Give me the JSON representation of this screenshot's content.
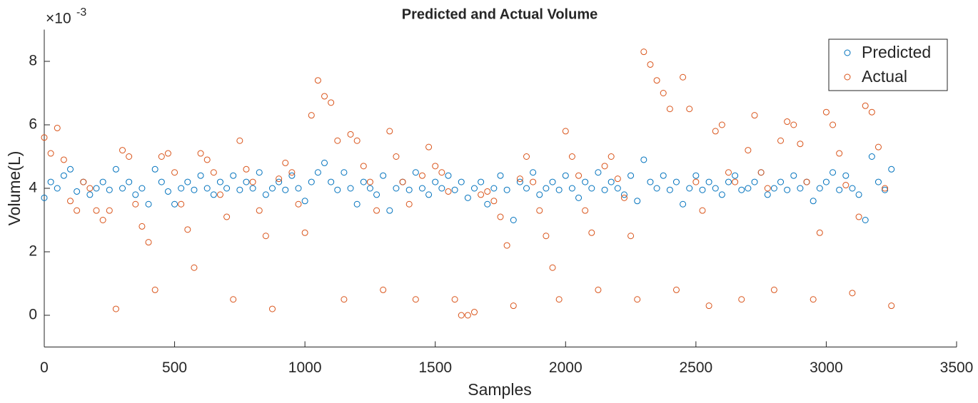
{
  "chart_data": {
    "type": "scatter",
    "title": "Predicted and Actual Volume",
    "x_label": "Samples",
    "y_label": "Volume(L)",
    "y_multiplier": "×10",
    "y_exponent": "-3",
    "xlim": [
      0,
      3500
    ],
    "xticks": [
      0,
      500,
      1000,
      1500,
      2000,
      2500,
      3000,
      3500
    ],
    "ylim": [
      -1,
      9
    ],
    "yticks": [
      0,
      2,
      4,
      6,
      8
    ],
    "grid": false,
    "legend": "top-right",
    "x": [
      0,
      25,
      50,
      75,
      100,
      125,
      150,
      175,
      200,
      225,
      250,
      275,
      300,
      325,
      350,
      375,
      400,
      425,
      450,
      475,
      500,
      525,
      550,
      575,
      600,
      625,
      650,
      675,
      700,
      725,
      750,
      775,
      800,
      825,
      850,
      875,
      900,
      925,
      950,
      975,
      1000,
      1025,
      1050,
      1075,
      1100,
      1125,
      1150,
      1175,
      1200,
      1225,
      1250,
      1275,
      1300,
      1325,
      1350,
      1375,
      1400,
      1425,
      1450,
      1475,
      1500,
      1525,
      1550,
      1575,
      1600,
      1625,
      1650,
      1675,
      1700,
      1725,
      1750,
      1775,
      1800,
      1825,
      1850,
      1875,
      1900,
      1925,
      1950,
      1975,
      2000,
      2025,
      2050,
      2075,
      2100,
      2125,
      2150,
      2175,
      2200,
      2225,
      2250,
      2275,
      2300,
      2325,
      2350,
      2375,
      2400,
      2425,
      2450,
      2475,
      2500,
      2525,
      2550,
      2575,
      2600,
      2625,
      2650,
      2675,
      2700,
      2725,
      2750,
      2775,
      2800,
      2825,
      2850,
      2875,
      2900,
      2925,
      2950,
      2975,
      3000,
      3025,
      3050,
      3075,
      3100,
      3125,
      3150,
      3175,
      3200,
      3225,
      3250
    ],
    "series": [
      {
        "name": "Predicted",
        "color": "#0072BD",
        "values": [
          3.7,
          4.2,
          4.0,
          4.4,
          4.6,
          3.9,
          4.2,
          3.8,
          4.0,
          4.2,
          3.95,
          4.6,
          4.0,
          4.2,
          3.8,
          4.0,
          3.5,
          4.6,
          4.2,
          3.9,
          3.5,
          4.0,
          4.2,
          3.95,
          4.4,
          4.0,
          3.8,
          4.2,
          4.0,
          4.4,
          3.95,
          4.2,
          4.0,
          4.5,
          3.8,
          4.0,
          4.2,
          3.95,
          4.4,
          4.0,
          3.6,
          4.2,
          4.5,
          4.8,
          4.2,
          3.95,
          4.5,
          4.0,
          3.5,
          4.2,
          4.0,
          3.8,
          4.4,
          3.3,
          4.0,
          4.2,
          3.95,
          4.5,
          4.0,
          3.8,
          4.2,
          4.0,
          4.4,
          3.95,
          4.2,
          3.7,
          4.0,
          4.2,
          3.5,
          4.0,
          4.4,
          3.95,
          3.0,
          4.2,
          4.0,
          4.5,
          3.8,
          4.0,
          4.2,
          3.95,
          4.4,
          4.0,
          3.7,
          4.2,
          4.0,
          4.5,
          3.95,
          4.2,
          4.0,
          3.8,
          4.4,
          3.6,
          4.9,
          4.2,
          4.0,
          4.4,
          3.95,
          4.2,
          3.5,
          4.0,
          4.4,
          3.95,
          4.2,
          4.0,
          3.8,
          4.2,
          4.4,
          3.95,
          4.0,
          4.2,
          4.5,
          3.8,
          4.0,
          4.2,
          3.95,
          4.4,
          4.0,
          4.2,
          3.6,
          4.0,
          4.2,
          4.5,
          3.95,
          4.4,
          4.0,
          3.8,
          3.0,
          5.0,
          4.2,
          3.95,
          4.6
        ]
      },
      {
        "name": "Actual",
        "color": "#D95319",
        "values": [
          5.6,
          5.1,
          5.9,
          4.9,
          3.6,
          3.3,
          4.2,
          4.0,
          3.3,
          3.0,
          3.3,
          0.2,
          5.2,
          5.0,
          3.5,
          2.8,
          2.3,
          0.8,
          5.0,
          5.1,
          4.5,
          3.5,
          2.7,
          1.5,
          5.1,
          4.9,
          4.5,
          3.8,
          3.1,
          0.5,
          5.5,
          4.6,
          4.2,
          3.3,
          2.5,
          0.2,
          4.3,
          4.8,
          4.5,
          3.5,
          2.6,
          6.3,
          7.4,
          6.9,
          6.7,
          5.5,
          0.5,
          5.7,
          5.5,
          4.7,
          4.2,
          3.3,
          0.8,
          5.8,
          5.0,
          4.2,
          3.5,
          0.5,
          4.4,
          5.3,
          4.7,
          4.5,
          3.9,
          0.5,
          0.0,
          0.0,
          0.1,
          3.8,
          3.9,
          3.6,
          3.1,
          2.2,
          0.3,
          4.3,
          5.0,
          4.2,
          3.3,
          2.5,
          1.5,
          0.5,
          5.8,
          5.0,
          4.4,
          3.3,
          2.6,
          0.8,
          4.7,
          5.0,
          4.3,
          3.7,
          2.5,
          0.5,
          8.3,
          7.9,
          7.4,
          7.0,
          6.5,
          0.8,
          7.5,
          6.5,
          4.2,
          3.3,
          0.3,
          5.8,
          6.0,
          4.5,
          4.2,
          0.5,
          5.2,
          6.3,
          4.5,
          4.0,
          0.8,
          5.5,
          6.1,
          6.0,
          5.4,
          4.2,
          0.5,
          2.6,
          6.4,
          6.0,
          5.1,
          4.1,
          0.7,
          3.1,
          6.6,
          6.4,
          5.3,
          4.0,
          0.3
        ]
      }
    ]
  }
}
